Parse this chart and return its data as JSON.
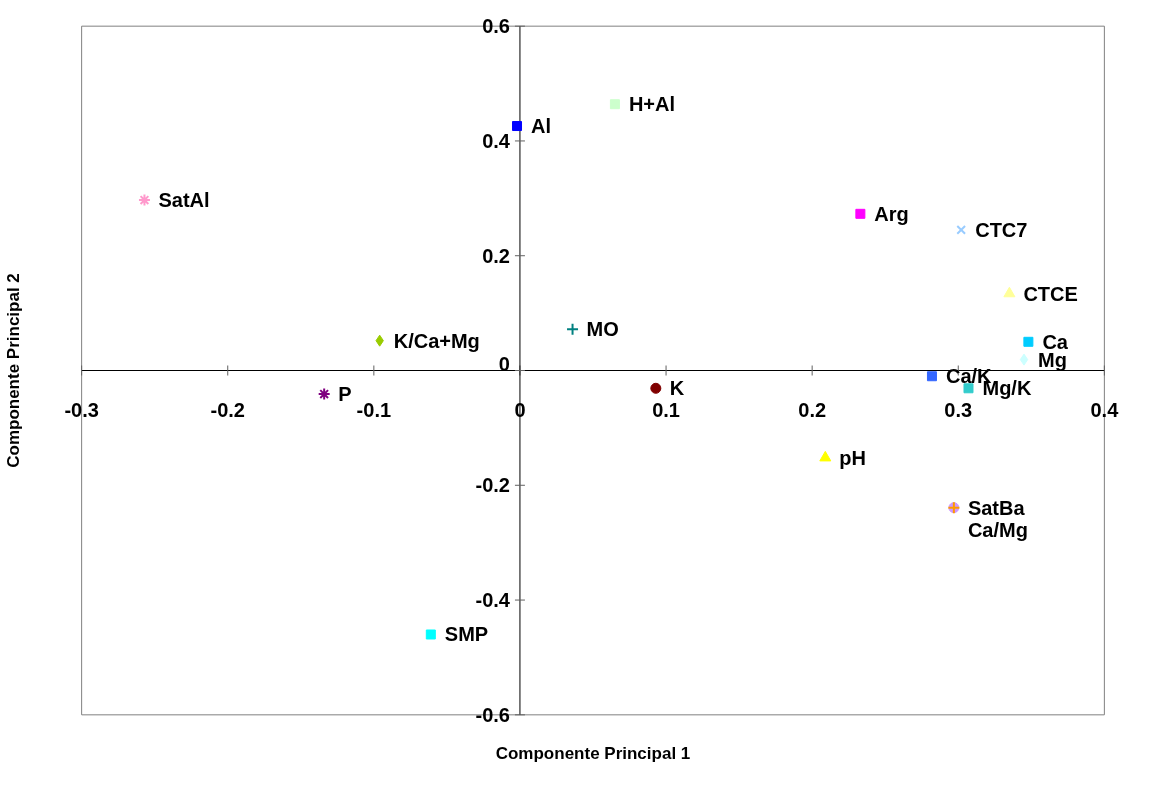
{
  "chart_data": {
    "type": "scatter",
    "xlabel": "Componente Principal 1",
    "ylabel": "Componente Principal 2",
    "xlim": [
      -0.3,
      0.4
    ],
    "ylim": [
      -0.6,
      0.6
    ],
    "xticks": [
      -0.3,
      -0.2,
      -0.1,
      0,
      0.1,
      0.2,
      0.3,
      0.4
    ],
    "yticks": [
      -0.6,
      -0.4,
      -0.2,
      0,
      0.2,
      0.4,
      0.6
    ],
    "grid": false,
    "series": [
      {
        "name": "Al",
        "color": "#0000ff",
        "marker": "square",
        "x": [
          -0.002
        ],
        "values": [
          0.426
        ]
      },
      {
        "name": "H+Al",
        "color": "#ccffcc",
        "marker": "square",
        "x": [
          0.065
        ],
        "values": [
          0.464
        ]
      },
      {
        "name": "SatAl",
        "color": "#ff99cc",
        "marker": "cross",
        "x": [
          -0.257
        ],
        "values": [
          0.297
        ]
      },
      {
        "name": "Arg",
        "color": "#ff00ff",
        "marker": "square",
        "x": [
          0.233
        ],
        "values": [
          0.273
        ]
      },
      {
        "name": "CTC7",
        "color": "#99ccff",
        "marker": "x",
        "x": [
          0.302
        ],
        "values": [
          0.245
        ]
      },
      {
        "name": "CTCE",
        "color": "#ffff99",
        "marker": "triangle",
        "x": [
          0.335
        ],
        "values": [
          0.134
        ]
      },
      {
        "name": "Ca",
        "color": "#00ccff",
        "marker": "square",
        "x": [
          0.348
        ],
        "values": [
          0.05
        ]
      },
      {
        "name": "Mg",
        "color": "#ccffff",
        "marker": "diamond",
        "x": [
          0.345
        ],
        "values": [
          0.019
        ]
      },
      {
        "name": "MO",
        "color": "#008080",
        "marker": "cross",
        "x": [
          0.036
        ],
        "values": [
          0.072
        ]
      },
      {
        "name": "K/Ca+Mg",
        "color": "#99cc00",
        "marker": "diamond",
        "x": [
          -0.096
        ],
        "values": [
          0.052
        ]
      },
      {
        "name": "P",
        "color": "#800080",
        "marker": "cross",
        "x": [
          -0.134
        ],
        "values": [
          -0.041
        ]
      },
      {
        "name": "K",
        "color": "#800000",
        "marker": "circle",
        "x": [
          0.093
        ],
        "values": [
          -0.031
        ]
      },
      {
        "name": "Ca/K",
        "color": "#3366ff",
        "marker": "square",
        "x": [
          0.282
        ],
        "values": [
          -0.01
        ]
      },
      {
        "name": "Mg/K",
        "color": "#33cccc",
        "marker": "square",
        "x": [
          0.307
        ],
        "values": [
          -0.031
        ]
      },
      {
        "name": "pH",
        "color": "#ffff00",
        "marker": "triangle",
        "x": [
          0.209
        ],
        "values": [
          -0.152
        ]
      },
      {
        "name": "SMP",
        "color": "#00ffff",
        "marker": "square",
        "x": [
          -0.061
        ],
        "values": [
          -0.46
        ]
      },
      {
        "name": "SatBa",
        "color": "#cc99ff",
        "marker": "circle",
        "x": [
          0.297
        ],
        "values": [
          -0.239
        ]
      },
      {
        "name": "Ca/Mg",
        "color": "#ff9900",
        "marker": "cross",
        "x": [
          0.297
        ],
        "values": [
          -0.239
        ]
      }
    ]
  }
}
